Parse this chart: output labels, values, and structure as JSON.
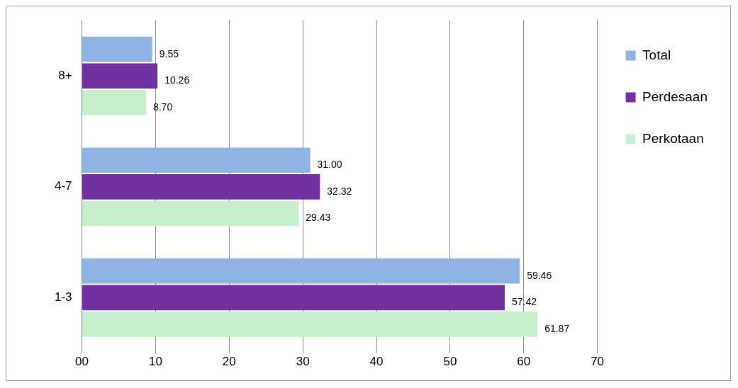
{
  "chart_data": {
    "type": "bar",
    "orientation": "horizontal",
    "categories": [
      "8+",
      "4-7",
      "1-3"
    ],
    "series": [
      {
        "name": "Total",
        "color": "#8db4e2",
        "values": [
          9.55,
          31.0,
          59.46
        ],
        "value_labels": [
          "9.55",
          "31.00",
          "59.46"
        ]
      },
      {
        "name": "Perdesaan",
        "color": "#7030a0",
        "values": [
          10.26,
          32.32,
          57.42
        ],
        "value_labels": [
          "10.26",
          "32.32",
          "57.42"
        ]
      },
      {
        "name": "Perkotaan",
        "color": "#c6efce",
        "values": [
          8.7,
          29.43,
          61.87
        ],
        "value_labels": [
          "8.70",
          "29.43",
          "61.87"
        ]
      }
    ],
    "xlim": [
      0,
      70
    ],
    "xticks": [
      {
        "value": 0,
        "label": "00"
      },
      10,
      20,
      30,
      40,
      50,
      60,
      70
    ],
    "grid": "x",
    "legend": "right"
  }
}
